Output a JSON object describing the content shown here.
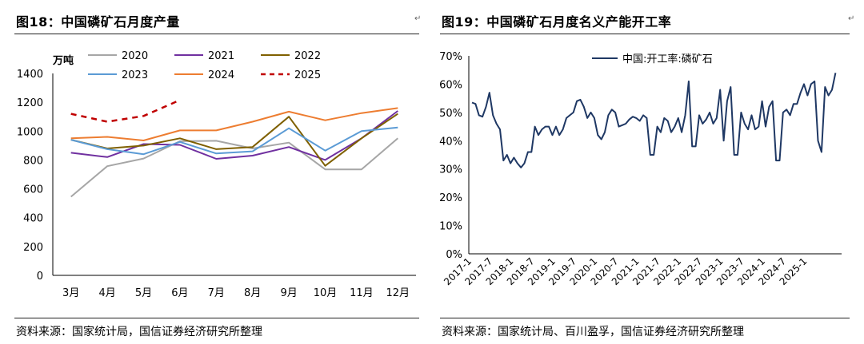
{
  "left": {
    "title": "图18：中国磷矿石月度产量",
    "source": "资料来源：国家统计局，国信证券经济研究所整理",
    "chart_data": {
      "type": "line",
      "ylabel": "万吨",
      "ylim": [
        0,
        1400
      ],
      "yticks": [
        0,
        200,
        400,
        600,
        800,
        1000,
        1200,
        1400
      ],
      "categories": [
        "3月",
        "4月",
        "5月",
        "6月",
        "7月",
        "8月",
        "9月",
        "10月",
        "11月",
        "12月"
      ],
      "legend_position": "top",
      "series": [
        {
          "name": "2020",
          "color": "#A6A6A6",
          "dashed": false,
          "values": [
            545,
            757,
            810,
            930,
            933,
            880,
            920,
            735,
            735,
            950
          ]
        },
        {
          "name": "2021",
          "color": "#7030A0",
          "dashed": false,
          "values": [
            850,
            820,
            910,
            905,
            808,
            830,
            890,
            800,
            950,
            1140
          ]
        },
        {
          "name": "2022",
          "color": "#7F6000",
          "dashed": false,
          "values": [
            940,
            880,
            900,
            950,
            875,
            890,
            1100,
            760,
            950,
            1120
          ]
        },
        {
          "name": "2023",
          "color": "#5B9BD5",
          "dashed": false,
          "values": [
            940,
            875,
            840,
            925,
            845,
            860,
            1020,
            865,
            1000,
            1025
          ]
        },
        {
          "name": "2024",
          "color": "#ED7D31",
          "dashed": false,
          "values": [
            950,
            960,
            935,
            1005,
            1005,
            1065,
            1135,
            1075,
            1125,
            1160
          ]
        },
        {
          "name": "2025",
          "color": "#C00000",
          "dashed": true,
          "values": [
            1120,
            1065,
            1105,
            1215,
            null,
            null,
            null,
            null,
            null,
            null
          ]
        }
      ]
    }
  },
  "right": {
    "title": "图19：中国磷矿石月度名义产能开工率",
    "source": "资料来源：国家统计局、百川盈孚，国信证券经济研究所整理",
    "chart_data": {
      "type": "line",
      "ylim": [
        0,
        70
      ],
      "yticks": [
        "0%",
        "10%",
        "20%",
        "30%",
        "40%",
        "50%",
        "60%",
        "70%"
      ],
      "xticks": [
        "2017-1",
        "2017-7",
        "2018-1",
        "2018-7",
        "2019-1",
        "2019-7",
        "2020-1",
        "2020-7",
        "2021-1",
        "2021-7",
        "2022-1",
        "2022-7",
        "2023-1",
        "2023-7",
        "2024-1",
        "2024-7",
        "2025-1"
      ],
      "legend_position": "top",
      "series": [
        {
          "name": "中国:开工率:磷矿石",
          "color": "#1F3864",
          "values": [
            53.5,
            53,
            49,
            48.5,
            52,
            57,
            49,
            46,
            44,
            33,
            35,
            32,
            34,
            32,
            30.5,
            32,
            36,
            36,
            45,
            42,
            44,
            45,
            45,
            42,
            45,
            42,
            44,
            48,
            49,
            50,
            54,
            54.5,
            52,
            48,
            50,
            48,
            42,
            40.5,
            43,
            49,
            51,
            50,
            45,
            45.5,
            46,
            47.5,
            48.5,
            48,
            47,
            49,
            48,
            35,
            35,
            45,
            43,
            48,
            47,
            43,
            45,
            48,
            43,
            49,
            61,
            38,
            38,
            49,
            46,
            47.5,
            50,
            46,
            48,
            58,
            40,
            54,
            59,
            35,
            35,
            50,
            46,
            44,
            49,
            44,
            45,
            54,
            45,
            52,
            54,
            33,
            33,
            50,
            51,
            49,
            53,
            53,
            57,
            60,
            56,
            60,
            61,
            40,
            36,
            59,
            56,
            58,
            64
          ]
        }
      ]
    }
  }
}
